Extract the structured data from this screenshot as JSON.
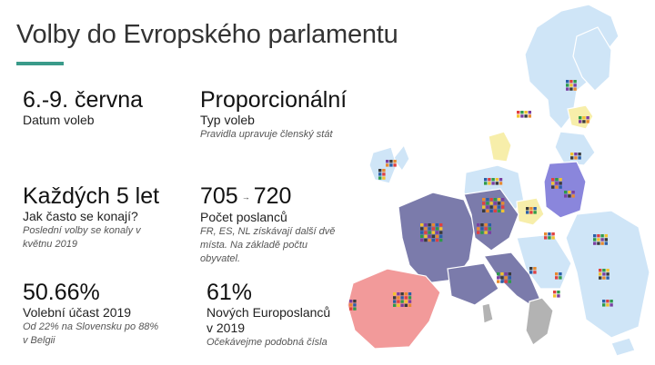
{
  "header": {
    "title": "Volby do Evropského parlamentu",
    "accent_color": "#3a9b8a"
  },
  "stats": {
    "date": {
      "value": "6.-9. června",
      "label": "Datum voleb"
    },
    "type": {
      "value": "Proporcionální",
      "label": "Typ voleb",
      "note": "Pravidla upravuje členský stát"
    },
    "frequency": {
      "value": "Každých 5 let",
      "label": "Jak často se konají?",
      "note": "Poslední volby se konaly v květnu 2019"
    },
    "seats": {
      "value_from": "705",
      "arrow": "→",
      "value_to": "720",
      "label": "Počet poslanců",
      "note": "FR, ES, NL získávají další dvě místa. Na základě počtu obyvatel."
    },
    "turnout": {
      "value": "50.66%",
      "label": "Volební účast 2019",
      "note": "Od 22% na Slovensku po 88% v Belgii"
    },
    "new_meps": {
      "value": "61%",
      "label": "Nových Europoslanců v 2019",
      "note": "Očekávejme podobná čísla"
    }
  },
  "map": {
    "colors": {
      "base": "#cfe5f7",
      "france": "#7b7bab",
      "germany": "#7b7bab",
      "italy": "#7b7bab",
      "spain": "#f29a9a",
      "poland": "#8a86dc",
      "yellow": "#f7eeaa",
      "grey": "#b3b3b3"
    }
  }
}
